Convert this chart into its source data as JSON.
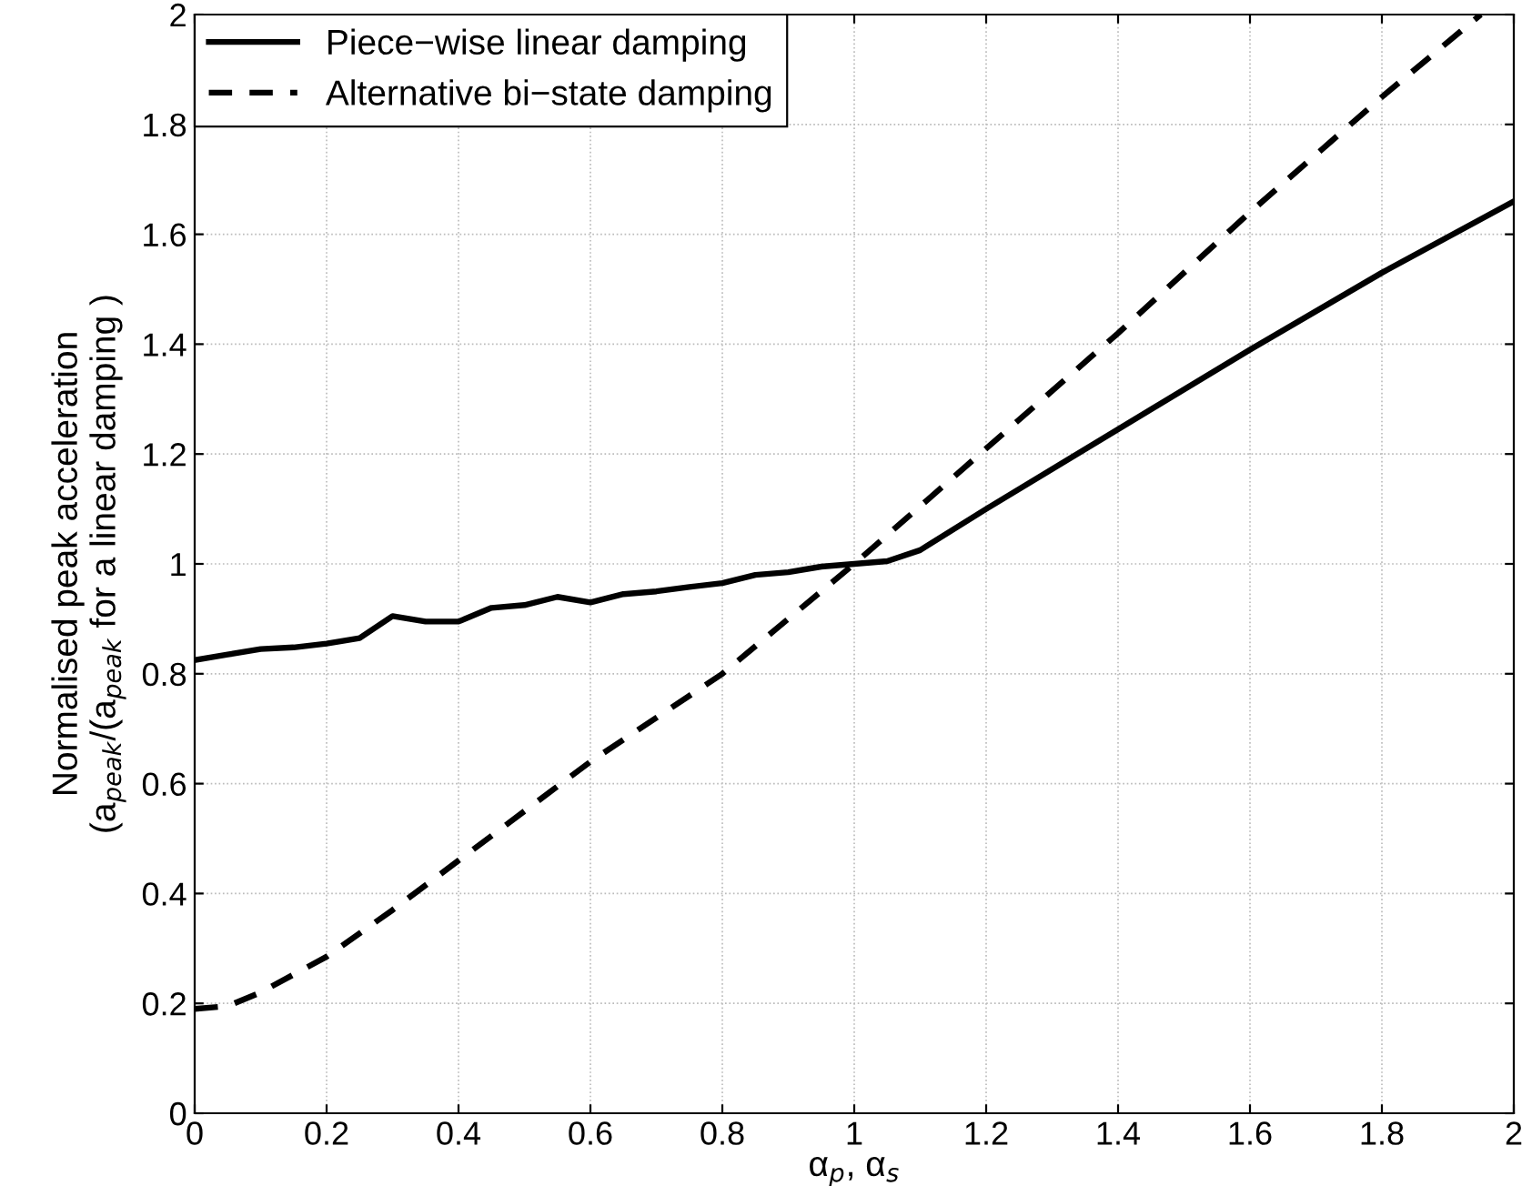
{
  "chart_data": {
    "type": "line",
    "xlabel": "α$_{p}$, α$_{s}$",
    "ylabel": "Normalised peak acceleration\n(a$_{peak}$/(a$_{peak}$ for a linear damping )",
    "series": [
      {
        "name": "Piece−wise linear damping",
        "color": "#000000",
        "line_style": "solid",
        "x": [
          0,
          0.05,
          0.1,
          0.15,
          0.2,
          0.25,
          0.3,
          0.35,
          0.4,
          0.45,
          0.5,
          0.55,
          0.6,
          0.65,
          0.7,
          0.75,
          0.8,
          0.85,
          0.9,
          0.95,
          1.0,
          1.05,
          1.1,
          1.2,
          1.4,
          1.6,
          1.8,
          2.0
        ],
        "values": [
          0.825,
          0.835,
          0.845,
          0.848,
          0.855,
          0.865,
          0.905,
          0.895,
          0.895,
          0.92,
          0.925,
          0.94,
          0.93,
          0.945,
          0.95,
          0.958,
          0.965,
          0.98,
          0.985,
          0.995,
          1.0,
          1.005,
          1.025,
          1.1,
          1.245,
          1.39,
          1.53,
          1.66
        ]
      },
      {
        "name": "Alternative bi−state damping",
        "color": "#000000",
        "line_style": "dashed",
        "x": [
          0,
          0.05,
          0.1,
          0.2,
          0.3,
          0.4,
          0.5,
          0.6,
          0.7,
          0.8,
          0.9,
          1.0,
          1.2,
          1.4,
          1.6,
          1.8,
          1.95
        ],
        "values": [
          0.19,
          0.195,
          0.22,
          0.285,
          0.37,
          0.46,
          0.55,
          0.64,
          0.72,
          0.8,
          0.9,
          1.0,
          1.21,
          1.42,
          1.64,
          1.85,
          2.0
        ]
      }
    ],
    "xlim": [
      0,
      2
    ],
    "xticks": [
      0,
      0.2,
      0.4,
      0.6,
      0.8,
      1,
      1.2,
      1.4,
      1.6,
      1.8,
      2
    ],
    "ylim": [
      0,
      2
    ],
    "yticks": [
      0,
      0.2,
      0.4,
      0.6,
      0.8,
      1,
      1.2,
      1.4,
      1.6,
      1.8,
      2
    ],
    "grid": true,
    "legend": "top left"
  }
}
